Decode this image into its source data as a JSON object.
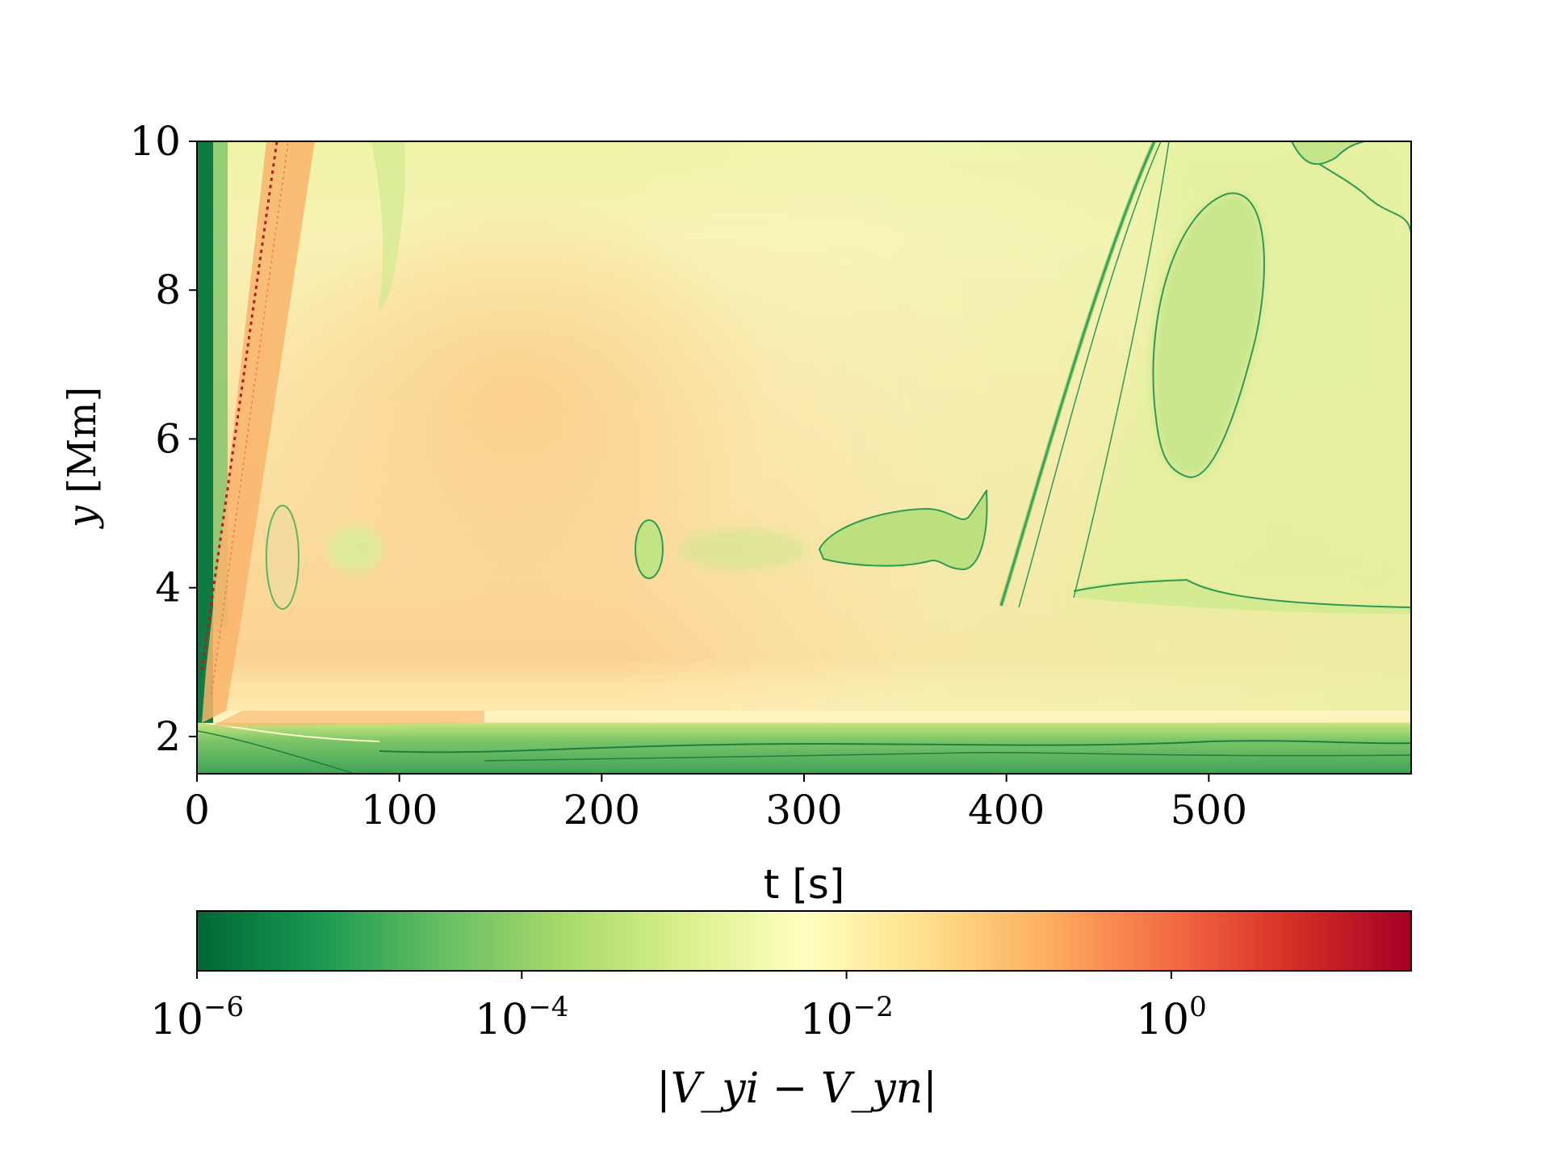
{
  "chart_data": {
    "type": "heatmap",
    "title": "",
    "xlabel": "t [s]",
    "ylabel_var": "y",
    "ylabel_unit": "[Mm]",
    "xlim": [
      0,
      600
    ],
    "ylim": [
      1.5,
      10
    ],
    "x_ticks": [
      0,
      100,
      200,
      300,
      400,
      500
    ],
    "y_ticks": [
      2,
      4,
      6,
      8,
      10
    ],
    "colorbar": {
      "label": "|V_yi − V_yn|",
      "scale": "log",
      "range": [
        1e-06,
        30
      ],
      "colormap": "RdYlGn_r",
      "ticks": [
        {
          "value": 1e-06,
          "base": "10",
          "exp": "−6"
        },
        {
          "value": 0.0001,
          "base": "10",
          "exp": "−4"
        },
        {
          "value": 0.01,
          "base": "10",
          "exp": "−2"
        },
        {
          "value": 1,
          "base": "10",
          "exp": "0"
        }
      ],
      "stops": [
        "#006837",
        "#1a9850",
        "#66bd63",
        "#a6d96a",
        "#d9ef8b",
        "#ffffbf",
        "#fee08b",
        "#fdae61",
        "#f46d43",
        "#d73027",
        "#a50026"
      ]
    },
    "features": [
      {
        "name": "front",
        "t": [
          2,
          42
        ],
        "y": [
          2.5,
          10
        ],
        "level": 10
      },
      {
        "name": "low-layer",
        "t": [
          0,
          600
        ],
        "y": [
          1.5,
          2.2
        ],
        "level": 3e-05
      },
      {
        "name": "hotspot",
        "t": [
          160
        ],
        "y": [
          6.5
        ],
        "level": 0.06
      }
    ]
  }
}
